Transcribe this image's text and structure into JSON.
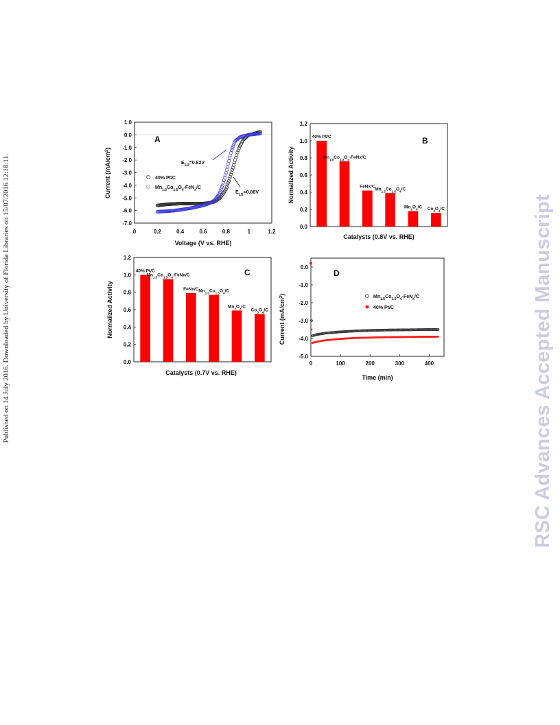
{
  "published_line": "Published on 14 July 2016. Downloaded by University of Florida Libraries on 15/07/2016 12:18:11.",
  "watermark": "RSC Advances Accepted Manuscript",
  "chart_data": [
    {
      "panel": "A",
      "type": "scatter",
      "xlabel": "Voltage (V vs. RHE)",
      "ylabel": "Current (mA/cm²)",
      "xlim": [
        0,
        1.2
      ],
      "ylim": [
        -7.0,
        1.0
      ],
      "xticks": [
        "0",
        "0.2",
        "0.4",
        "0.6",
        "0.8",
        "1",
        "1.2"
      ],
      "yticks": [
        "1.0",
        "0.0",
        "-1.0",
        "-2.0",
        "-3.0",
        "-4.0",
        "-5.0",
        "-6.0",
        "-7.0"
      ],
      "legend_position": "left",
      "series": [
        {
          "name": "40% Pt/C",
          "color": "#2a2a2a",
          "x": [
            0.2,
            0.3,
            0.4,
            0.5,
            0.6,
            0.65,
            0.7,
            0.75,
            0.8,
            0.83,
            0.86,
            0.88,
            0.9,
            0.92,
            0.95,
            1.0,
            1.05,
            1.1
          ],
          "y": [
            -5.6,
            -5.5,
            -5.45,
            -5.45,
            -5.45,
            -5.4,
            -5.3,
            -5.0,
            -4.3,
            -3.5,
            -2.6,
            -2.0,
            -1.4,
            -0.9,
            -0.4,
            0.0,
            0.1,
            0.25
          ]
        },
        {
          "name": "Mn1.5Co1.5O4-FeNx/C",
          "color": "#3a3adc",
          "x": [
            0.2,
            0.3,
            0.4,
            0.5,
            0.6,
            0.65,
            0.7,
            0.74,
            0.77,
            0.8,
            0.82,
            0.85,
            0.88,
            0.92,
            0.95,
            1.0,
            1.05,
            1.1
          ],
          "y": [
            -6.1,
            -6.05,
            -5.95,
            -5.8,
            -5.6,
            -5.45,
            -5.2,
            -4.7,
            -4.0,
            -3.0,
            -2.3,
            -1.2,
            -0.5,
            -0.2,
            -0.1,
            0.0,
            0.05,
            0.1
          ]
        }
      ],
      "annotations": [
        {
          "text": "E1/2=0.82V",
          "x": 0.82,
          "y": -2.3
        },
        {
          "text": "E1/2=0.88V",
          "x": 0.88,
          "y": -3.6
        }
      ],
      "legend_labels": {
        "sub_1_5": "1.5",
        "sub_4": "4",
        "sub_x": "x",
        "sub_1_2": "1/2",
        "sup_2": "2"
      }
    },
    {
      "panel": "B",
      "type": "bar",
      "xlabel": "Catalysts (0.8V vs. RHE)",
      "ylabel": "Normalized Activity",
      "ylim": [
        0,
        1.2
      ],
      "yticks": [
        "0.0",
        "0.2",
        "0.4",
        "0.6",
        "0.8",
        "1.0",
        "1.2"
      ],
      "bar_color": "#ff0000",
      "categories": [
        "40% Pt/C",
        "Mn1.5Co1.5O4-FeNx/C",
        "FeNx/C",
        "Mn1.5Co1.5O4/C",
        "Mn2O3/C",
        "Co3O4/C"
      ],
      "values": [
        1.0,
        0.76,
        0.42,
        0.39,
        0.18,
        0.16
      ]
    },
    {
      "panel": "C",
      "type": "bar",
      "xlabel": "Catalysts (0.7V vs. RHE)",
      "ylabel": "Normalized Activity",
      "ylim": [
        0,
        1.2
      ],
      "yticks": [
        "0.0",
        "0.2",
        "0.4",
        "0.6",
        "0.8",
        "1.0",
        "1.2"
      ],
      "bar_color": "#ff0000",
      "categories": [
        "40% Pt/C",
        "Mn1.5Co1.5O4-FeNx/C",
        "FeNx/C",
        "Mn1.5Co1.5O4/C",
        "Mn2O3/C",
        "Co3O4/C"
      ],
      "values": [
        1.0,
        0.95,
        0.79,
        0.77,
        0.59,
        0.55
      ]
    },
    {
      "panel": "D",
      "type": "scatter",
      "xlabel": "Time (min)",
      "ylabel": "Current (mA/cm²)",
      "xlim": [
        0,
        450
      ],
      "ylim": [
        -5.0,
        0.5
      ],
      "xticks": [
        "0",
        "100",
        "200",
        "300",
        "400"
      ],
      "yticks": [
        "0.0",
        "-1.0",
        "-2.0",
        "-3.0",
        "-4.0",
        "-5.0"
      ],
      "legend_position": "right",
      "series": [
        {
          "name": "Mn1.5Co1.5O4-FeNx/C",
          "color": "#333333",
          "x": [
            0,
            2,
            5,
            20,
            50,
            100,
            150,
            200,
            250,
            300,
            350,
            400,
            430
          ],
          "y": [
            0.2,
            -3.0,
            -3.85,
            -3.78,
            -3.7,
            -3.63,
            -3.58,
            -3.55,
            -3.53,
            -3.52,
            -3.51,
            -3.5,
            -3.5
          ]
        },
        {
          "name": "40% Pt/C",
          "color": "#ff1a1a",
          "x": [
            0,
            2,
            5,
            20,
            50,
            100,
            150,
            200,
            250,
            300,
            350,
            400,
            430
          ],
          "y": [
            0.2,
            -3.5,
            -4.25,
            -4.18,
            -4.1,
            -4.02,
            -3.97,
            -3.95,
            -3.93,
            -3.92,
            -3.91,
            -3.9,
            -3.9
          ]
        }
      ]
    }
  ]
}
